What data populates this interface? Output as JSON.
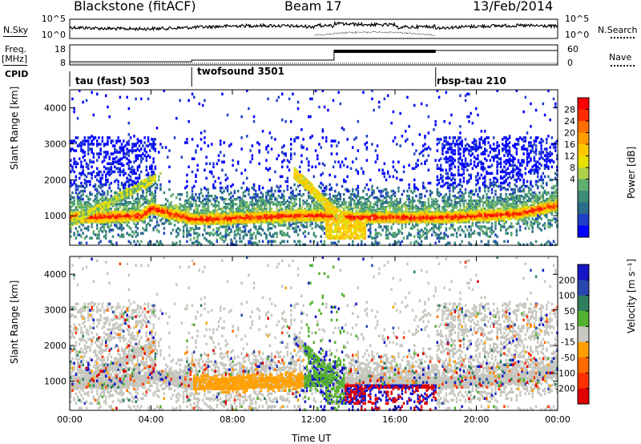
{
  "header": {
    "station": "Blackstone (fitACF)",
    "beam": "Beam 17",
    "date": "13/Feb/2014"
  },
  "top_panels": {
    "nsky": {
      "label": "N.Sky",
      "tick_high": "10^5",
      "tick_low": "10^0",
      "right_label": "N.Search"
    },
    "freq": {
      "label_line1": "Freq.",
      "label_line2": "[MHz]",
      "tick_high": "18",
      "tick_low": "8",
      "right_tick_high": "60",
      "right_tick_low": "0",
      "right_label": "Nave"
    },
    "cpid": {
      "label": "CPID",
      "segments": [
        {
          "name": "tau (fast) 503",
          "start_hour": 0
        },
        {
          "name": "twofsound 3501",
          "start_hour": 6
        },
        {
          "name": "rbsp-tau 210",
          "start_hour": 18
        }
      ]
    }
  },
  "chart_data": [
    {
      "type": "heatmap",
      "title": "Power",
      "ylabel": "Slant Range [km]",
      "xlabel": "Time UT",
      "xlim": [
        0,
        24
      ],
      "ylim": [
        180,
        4500
      ],
      "yticks": [
        "1000",
        "2000",
        "3000",
        "4000"
      ],
      "xticks": [
        "00:00",
        "04:00",
        "08:00",
        "12:00",
        "16:00",
        "20:00",
        "00:00"
      ],
      "colorbar": {
        "label": "Power [dB]",
        "ticks": [
          "28",
          "24",
          "20",
          "16",
          "12",
          "8",
          "4"
        ],
        "colors": [
          "#ff0000",
          "#ff2a00",
          "#ff6e00",
          "#ff9d00",
          "#ffc800",
          "#e8e000",
          "#b0d04a",
          "#5fae6e",
          "#3c8c78",
          "#2c6c8c",
          "#1e3ec8",
          "#0000ff"
        ]
      },
      "features": [
        {
          "name": "main echo band",
          "x": [
            0,
            3.5,
            4,
            6,
            9,
            11,
            12.5,
            14,
            18,
            22,
            24
          ],
          "y": [
            950,
            1000,
            1200,
            900,
            950,
            1000,
            1000,
            950,
            950,
            1050,
            1300
          ]
        }
      ]
    },
    {
      "type": "heatmap",
      "title": "Velocity",
      "ylabel": "Slant Range [km]",
      "xlabel": "Time UT",
      "xlim": [
        0,
        24
      ],
      "ylim": [
        180,
        4500
      ],
      "yticks": [
        "1000",
        "2000",
        "3000",
        "4000"
      ],
      "xticks": [
        "00:00",
        "04:00",
        "08:00",
        "12:00",
        "16:00",
        "20:00",
        "00:00"
      ],
      "colorbar": {
        "label": "Velocity [m s⁻¹]",
        "ticks": [
          "200",
          "100",
          "50",
          "15",
          "-15",
          "-50",
          "-100",
          "-200"
        ],
        "colors": [
          "#1515c8",
          "#2848b0",
          "#2f7f5f",
          "#54b030",
          "#c8c8c0",
          "#ffa000",
          "#ff6a00",
          "#ff3000",
          "#e00000"
        ]
      }
    }
  ],
  "colors": {
    "nsky_line": "#000000",
    "gray_velocity": "#c6c6be"
  }
}
